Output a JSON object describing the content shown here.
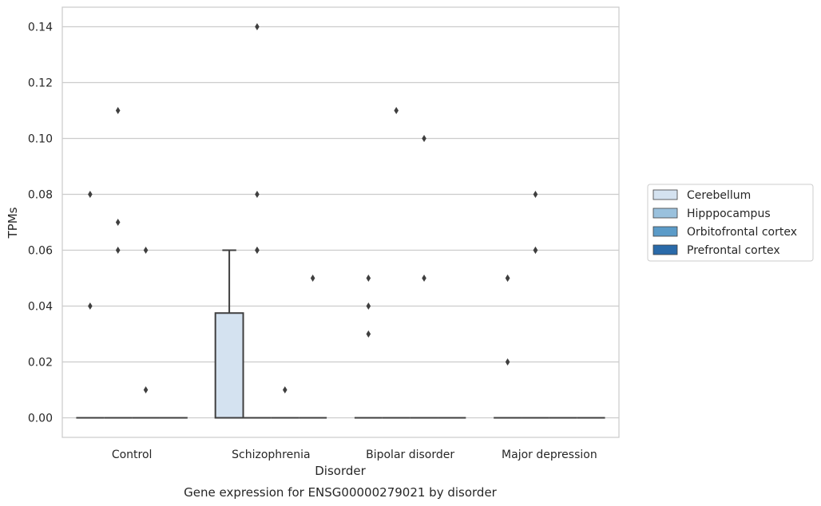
{
  "chart_data": {
    "type": "box",
    "title": "",
    "caption": "Gene expression for ENSG00000279021 by disorder",
    "xlabel": "Disorder",
    "ylabel": "TPMs",
    "categories": [
      "Control",
      "Schizophrenia",
      "Bipolar disorder",
      "Major depression"
    ],
    "ylim": [
      -0.007,
      0.147
    ],
    "yticks": [
      "0.00",
      "0.02",
      "0.04",
      "0.06",
      "0.08",
      "0.10",
      "0.12",
      "0.14"
    ],
    "ytick_values": [
      0,
      0.02,
      0.04,
      0.06,
      0.08,
      0.1,
      0.12,
      0.14
    ],
    "grid": "horizontal",
    "legend_position": "right",
    "series": [
      {
        "name": "Cerebellum",
        "color": "#d4e2f0",
        "boxes": [
          {
            "category": "Control",
            "q1": 0,
            "median": 0,
            "q3": 0,
            "whisker_low": 0,
            "whisker_high": 0,
            "outliers": [
              0.04,
              0.08
            ]
          },
          {
            "category": "Schizophrenia",
            "q1": 0,
            "median": 0,
            "q3": 0.0375,
            "whisker_low": 0,
            "whisker_high": 0.06,
            "outliers": []
          },
          {
            "category": "Bipolar disorder",
            "q1": 0,
            "median": 0,
            "q3": 0,
            "whisker_low": 0,
            "whisker_high": 0,
            "outliers": [
              0.03,
              0.04,
              0.05
            ]
          },
          {
            "category": "Major depression",
            "q1": 0,
            "median": 0,
            "q3": 0,
            "whisker_low": 0,
            "whisker_high": 0,
            "outliers": [
              0.02,
              0.05,
              0.05
            ]
          }
        ]
      },
      {
        "name": "Hipppocampus",
        "color": "#9ac1dd",
        "boxes": [
          {
            "category": "Control",
            "q1": 0,
            "median": 0,
            "q3": 0,
            "whisker_low": 0,
            "whisker_high": 0,
            "outliers": [
              0.06,
              0.07,
              0.11
            ]
          },
          {
            "category": "Schizophrenia",
            "q1": 0,
            "median": 0,
            "q3": 0,
            "whisker_low": 0,
            "whisker_high": 0,
            "outliers": [
              0.06,
              0.06,
              0.08,
              0.14
            ]
          },
          {
            "category": "Bipolar disorder",
            "q1": 0,
            "median": 0,
            "q3": 0,
            "whisker_low": 0,
            "whisker_high": 0,
            "outliers": [
              0.11
            ]
          },
          {
            "category": "Major depression",
            "q1": 0,
            "median": 0,
            "q3": 0,
            "whisker_low": 0,
            "whisker_high": 0,
            "outliers": [
              0.06,
              0.06,
              0.08
            ]
          }
        ]
      },
      {
        "name": "Orbitofrontal cortex",
        "color": "#5b9bc8",
        "boxes": [
          {
            "category": "Control",
            "q1": 0,
            "median": 0,
            "q3": 0,
            "whisker_low": 0,
            "whisker_high": 0,
            "outliers": [
              0.01,
              0.06
            ]
          },
          {
            "category": "Schizophrenia",
            "q1": 0,
            "median": 0,
            "q3": 0,
            "whisker_low": 0,
            "whisker_high": 0,
            "outliers": [
              0.01
            ]
          },
          {
            "category": "Bipolar disorder",
            "q1": 0,
            "median": 0,
            "q3": 0,
            "whisker_low": 0,
            "whisker_high": 0,
            "outliers": [
              0.05,
              0.1
            ]
          },
          {
            "category": "Major depression",
            "q1": 0,
            "median": 0,
            "q3": 0,
            "whisker_low": 0,
            "whisker_high": 0,
            "outliers": []
          }
        ]
      },
      {
        "name": "Prefrontal cortex",
        "color": "#2a6aa9",
        "boxes": [
          {
            "category": "Control",
            "q1": 0,
            "median": 0,
            "q3": 0,
            "whisker_low": 0,
            "whisker_high": 0,
            "outliers": []
          },
          {
            "category": "Schizophrenia",
            "q1": 0,
            "median": 0,
            "q3": 0,
            "whisker_low": 0,
            "whisker_high": 0,
            "outliers": [
              0.05
            ]
          },
          {
            "category": "Bipolar disorder",
            "q1": 0,
            "median": 0,
            "q3": 0,
            "whisker_low": 0,
            "whisker_high": 0,
            "outliers": []
          },
          {
            "category": "Major depression",
            "q1": 0,
            "median": 0,
            "q3": 0,
            "whisker_low": 0,
            "whisker_high": 0,
            "outliers": []
          }
        ]
      }
    ]
  }
}
